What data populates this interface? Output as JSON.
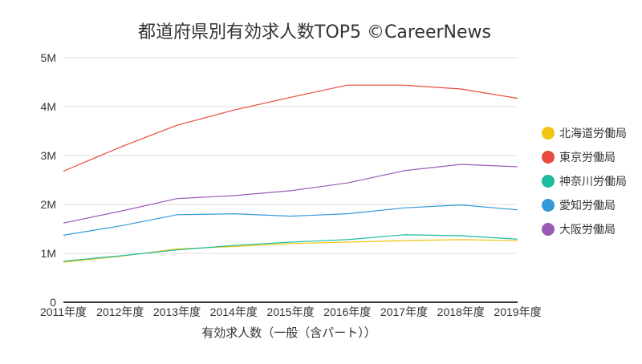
{
  "chart_data": {
    "type": "line",
    "title": "都道府県別有効求人数TOP5 ©CareerNews",
    "xlabel": "有効求人数（一般（含パート））",
    "ylabel": "",
    "categories": [
      "2011年度",
      "2012年度",
      "2013年度",
      "2014年度",
      "2015年度",
      "2016年度",
      "2017年度",
      "2018年度",
      "2019年度"
    ],
    "y_ticks": [
      {
        "value": 0,
        "label": "0"
      },
      {
        "value": 1000000,
        "label": "1M"
      },
      {
        "value": 2000000,
        "label": "2M"
      },
      {
        "value": 3000000,
        "label": "3M"
      },
      {
        "value": 4000000,
        "label": "4M"
      },
      {
        "value": 5000000,
        "label": "5M"
      }
    ],
    "ylim": [
      0,
      5000000
    ],
    "grid": true,
    "legend_position": "right",
    "series": [
      {
        "name": "北海道労働局",
        "color": "#f1c40f",
        "values": [
          820000,
          940000,
          1090000,
          1140000,
          1200000,
          1230000,
          1260000,
          1280000,
          1260000
        ]
      },
      {
        "name": "東京労働局",
        "color": "#e74c3c",
        "values": [
          2680000,
          3170000,
          3620000,
          3930000,
          4190000,
          4440000,
          4440000,
          4360000,
          4170000
        ]
      },
      {
        "name": "神奈川労働局",
        "color": "#1abc9c",
        "values": [
          840000,
          950000,
          1070000,
          1160000,
          1230000,
          1280000,
          1380000,
          1360000,
          1290000
        ]
      },
      {
        "name": "愛知労働局",
        "color": "#3498db",
        "values": [
          1370000,
          1560000,
          1790000,
          1810000,
          1760000,
          1810000,
          1930000,
          1990000,
          1890000
        ]
      },
      {
        "name": "大阪労働局",
        "color": "#9b59b6",
        "values": [
          1620000,
          1860000,
          2120000,
          2180000,
          2280000,
          2440000,
          2690000,
          2820000,
          2770000
        ]
      }
    ]
  }
}
